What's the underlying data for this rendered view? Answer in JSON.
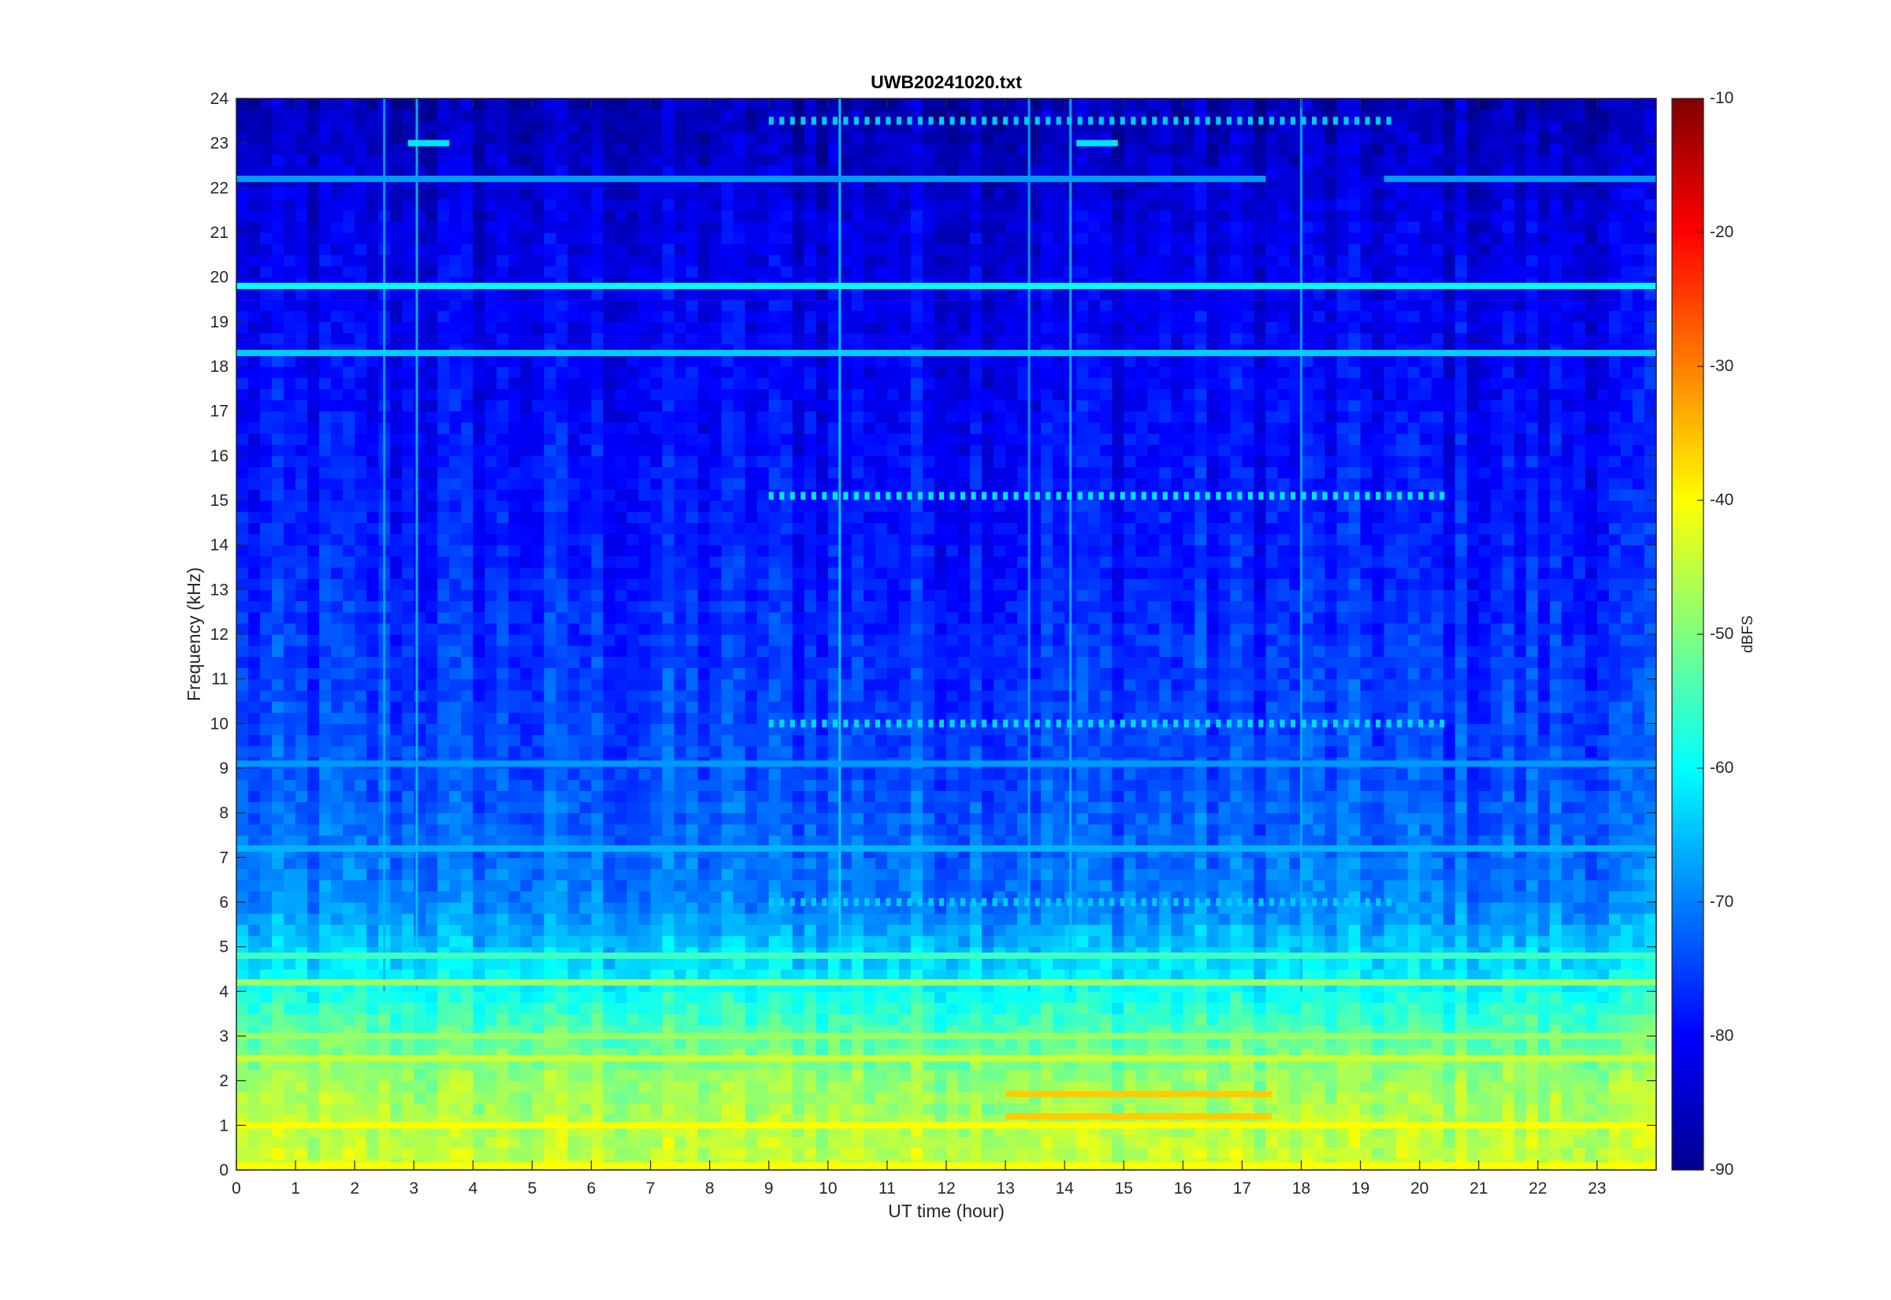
{
  "chart_data": {
    "type": "heatmap",
    "title": "UWB20241020.txt",
    "xlabel": "UT time (hour)",
    "ylabel": "Frequency (kHz)",
    "xlim": [
      0,
      24
    ],
    "ylim": [
      0,
      24
    ],
    "x_ticks": [
      0,
      1,
      2,
      3,
      4,
      5,
      6,
      7,
      8,
      9,
      10,
      11,
      12,
      13,
      14,
      15,
      16,
      17,
      18,
      19,
      20,
      21,
      22,
      23
    ],
    "y_ticks": [
      0,
      1,
      2,
      3,
      4,
      5,
      6,
      7,
      8,
      9,
      10,
      11,
      12,
      13,
      14,
      15,
      16,
      17,
      18,
      19,
      20,
      21,
      22,
      23,
      24
    ],
    "colorbar": {
      "label": "dBFS",
      "limits": [
        -90,
        -10
      ],
      "ticks": [
        -90,
        -80,
        -70,
        -60,
        -50,
        -40,
        -30,
        -20,
        -10
      ],
      "colormap": "jet"
    },
    "background_level_dbfs": -80,
    "gradient": {
      "description_points": [
        {
          "freq_khz": 0.5,
          "level_dbfs": -45
        },
        {
          "freq_khz": 2,
          "level_dbfs": -48
        },
        {
          "freq_khz": 3,
          "level_dbfs": -53
        },
        {
          "freq_khz": 4.5,
          "level_dbfs": -62
        },
        {
          "freq_khz": 6,
          "level_dbfs": -70
        },
        {
          "freq_khz": 9,
          "level_dbfs": -74
        },
        {
          "freq_khz": 14,
          "level_dbfs": -78
        },
        {
          "freq_khz": 21,
          "level_dbfs": -82
        },
        {
          "freq_khz": 24,
          "level_dbfs": -86
        }
      ]
    },
    "tonal_lines": [
      {
        "freq_khz": 19.8,
        "t_start": 0,
        "t_end": 24,
        "level_dbfs": -60
      },
      {
        "freq_khz": 18.3,
        "t_start": 0,
        "t_end": 24,
        "level_dbfs": -64
      },
      {
        "freq_khz": 22.2,
        "t_start": 0,
        "t_end": 17.4,
        "level_dbfs": -68
      },
      {
        "freq_khz": 22.2,
        "t_start": 19.4,
        "t_end": 24,
        "level_dbfs": -68
      },
      {
        "freq_khz": 23.0,
        "t_start": 2.9,
        "t_end": 3.6,
        "level_dbfs": -62
      },
      {
        "freq_khz": 23.0,
        "t_start": 14.2,
        "t_end": 14.9,
        "level_dbfs": -62
      },
      {
        "freq_khz": 4.2,
        "t_start": 0,
        "t_end": 24,
        "level_dbfs": -48
      },
      {
        "freq_khz": 4.8,
        "t_start": 0,
        "t_end": 24,
        "level_dbfs": -55
      },
      {
        "freq_khz": 2.5,
        "t_start": 0,
        "t_end": 24,
        "level_dbfs": -44
      },
      {
        "freq_khz": 3.0,
        "t_start": 0,
        "t_end": 24,
        "level_dbfs": -48
      },
      {
        "freq_khz": 1.0,
        "t_start": 0,
        "t_end": 24,
        "level_dbfs": -40
      },
      {
        "freq_khz": 1.7,
        "t_start": 13,
        "t_end": 17.5,
        "level_dbfs": -36
      },
      {
        "freq_khz": 1.2,
        "t_start": 13,
        "t_end": 17.5,
        "level_dbfs": -36
      },
      {
        "freq_khz": 9.1,
        "t_start": 0,
        "t_end": 24,
        "level_dbfs": -68
      },
      {
        "freq_khz": 7.2,
        "t_start": 0,
        "t_end": 24,
        "level_dbfs": -66
      },
      {
        "freq_khz": 0.1,
        "t_start": 0,
        "t_end": 24,
        "level_dbfs": -40
      }
    ],
    "pulsed_bands": [
      {
        "freq_khz": 15.1,
        "t_start": 9.0,
        "t_end": 20.5,
        "level_dbfs": -62
      },
      {
        "freq_khz": 10.0,
        "t_start": 9.0,
        "t_end": 20.5,
        "level_dbfs": -63
      },
      {
        "freq_khz": 6.0,
        "t_start": 9.0,
        "t_end": 19.5,
        "level_dbfs": -64
      },
      {
        "freq_khz": 23.5,
        "t_start": 9.0,
        "t_end": 19.5,
        "level_dbfs": -64
      }
    ],
    "vertical_streaks": [
      {
        "t": 2.5,
        "level_dbfs": -66
      },
      {
        "t": 3.05,
        "level_dbfs": -64
      },
      {
        "t": 10.2,
        "level_dbfs": -62
      },
      {
        "t": 13.4,
        "level_dbfs": -66
      },
      {
        "t": 14.1,
        "level_dbfs": -65
      },
      {
        "t": 18.0,
        "level_dbfs": -66
      }
    ]
  }
}
